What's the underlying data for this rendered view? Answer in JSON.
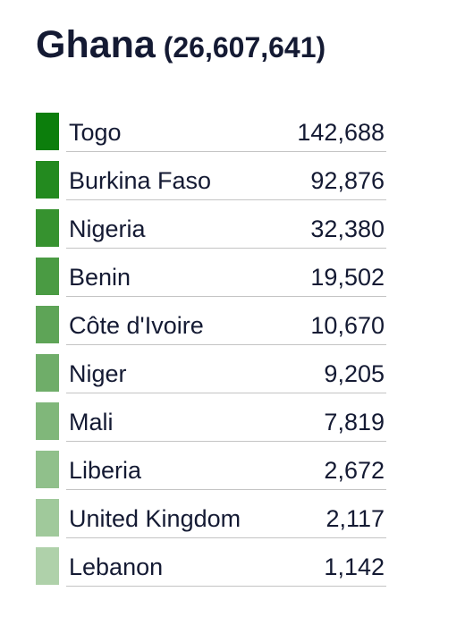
{
  "header": {
    "country": "Ghana",
    "total": "(26,607,641)"
  },
  "rows": [
    {
      "name": "Togo",
      "value": "142,688",
      "color": "#0c7e0c"
    },
    {
      "name": "Burkina Faso",
      "value": "92,876",
      "color": "#238a1f"
    },
    {
      "name": "Nigeria",
      "value": "32,380",
      "color": "#36922f"
    },
    {
      "name": "Benin",
      "value": "19,502",
      "color": "#4a9b43"
    },
    {
      "name": "Côte d'Ivoire",
      "value": "10,670",
      "color": "#5ea457"
    },
    {
      "name": "Niger",
      "value": "9,205",
      "color": "#6fad69"
    },
    {
      "name": "Mali",
      "value": "7,819",
      "color": "#80b77a"
    },
    {
      "name": "Liberia",
      "value": "2,672",
      "color": "#90c08b"
    },
    {
      "name": "United Kingdom",
      "value": "2,117",
      "color": "#a0c99b"
    },
    {
      "name": "Lebanon",
      "value": "1,142",
      "color": "#afd1aa"
    }
  ]
}
